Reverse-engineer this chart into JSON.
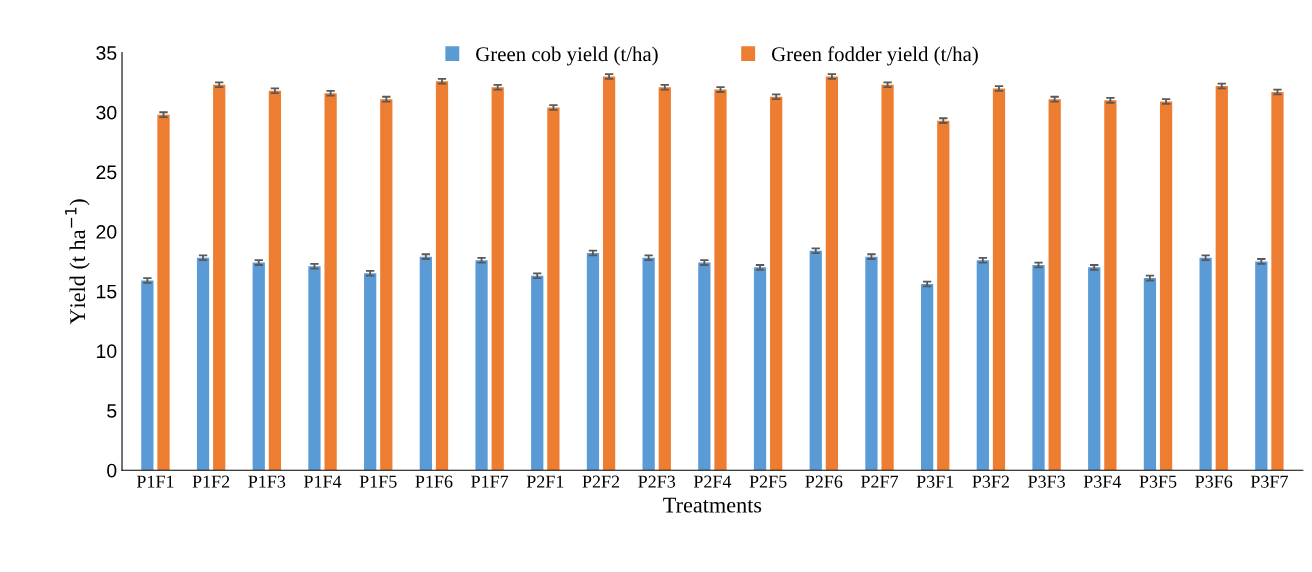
{
  "chart_data": {
    "type": "bar",
    "xlabel": "Treatments",
    "ylabel": "Yield (t ha$^{−1}$)",
    "categories": [
      "P1F1",
      "P1F2",
      "P1F3",
      "P1F4",
      "P1F5",
      "P1F6",
      "P1F7",
      "P2F1",
      "P2F2",
      "P2F3",
      "P2F4",
      "P2F5",
      "P2F6",
      "P2F7",
      "P3F1",
      "P3F2",
      "P3F3",
      "P3F4",
      "P3F5",
      "P3F6",
      "P3F7"
    ],
    "series": [
      {
        "name": "Green cob yield (t/ha)",
        "color": "#5b9bd5",
        "values": [
          15.9,
          17.8,
          17.4,
          17.1,
          16.5,
          17.9,
          17.6,
          16.3,
          18.2,
          17.8,
          17.4,
          17.0,
          18.4,
          17.9,
          15.6,
          17.6,
          17.2,
          17.0,
          16.1,
          17.8,
          17.5
        ],
        "errors": [
          0.2,
          0.2,
          0.2,
          0.2,
          0.2,
          0.2,
          0.2,
          0.2,
          0.2,
          0.2,
          0.2,
          0.2,
          0.2,
          0.2,
          0.2,
          0.2,
          0.2,
          0.2,
          0.2,
          0.2,
          0.2
        ]
      },
      {
        "name": "Green fodder yield (t/ha)",
        "color": "#ed7d31",
        "values": [
          29.8,
          32.3,
          31.8,
          31.6,
          31.1,
          32.6,
          32.1,
          30.4,
          33.0,
          32.1,
          31.9,
          31.3,
          33.0,
          32.3,
          29.3,
          32.0,
          31.1,
          31.0,
          30.9,
          32.2,
          31.7
        ],
        "errors": [
          0.2,
          0.2,
          0.2,
          0.2,
          0.2,
          0.2,
          0.2,
          0.2,
          0.2,
          0.2,
          0.2,
          0.2,
          0.2,
          0.2,
          0.2,
          0.2,
          0.2,
          0.2,
          0.2,
          0.2,
          0.2
        ]
      }
    ],
    "ylim": [
      0,
      35
    ],
    "yticks": [
      0,
      5,
      10,
      15,
      20,
      25,
      30,
      35
    ],
    "grid": false,
    "legend": "top"
  }
}
